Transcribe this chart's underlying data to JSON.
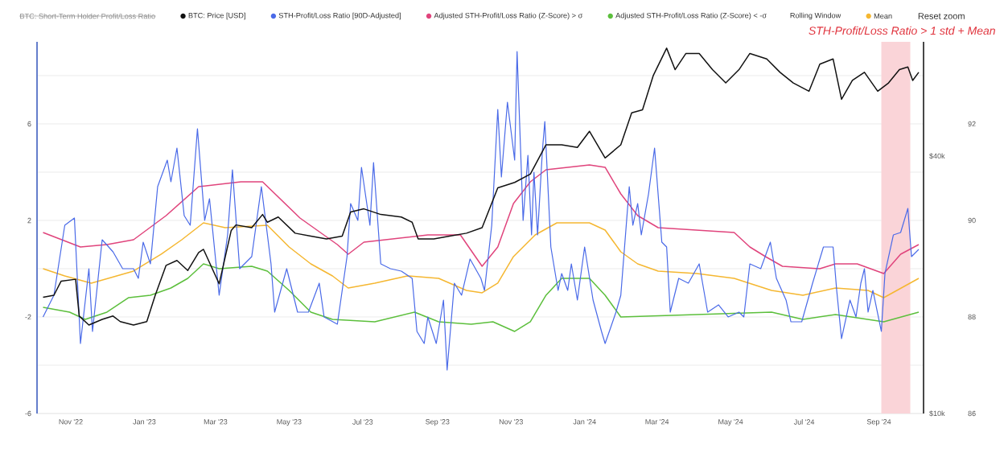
{
  "chart_data": {
    "type": "line",
    "annotations": [
      "BTC: Short-Term Holder Profit/Loss Ratio",
      "Rolling Window",
      "Reset zoom"
    ],
    "legend": "top",
    "grid": "y",
    "log": "y2",
    "xlim": [
      "2022-10-04",
      "2024-10-08"
    ],
    "xticks": [
      {
        "value": "2022-11-01",
        "label": "Nov '22"
      },
      {
        "value": "2023-01-01",
        "label": "Jan '23"
      },
      {
        "value": "2023-03-01",
        "label": "Mar '23"
      },
      {
        "value": "2023-05-01",
        "label": "May '23"
      },
      {
        "value": "2023-07-01",
        "label": "Jul '23"
      },
      {
        "value": "2023-09-01",
        "label": "Sep '23"
      },
      {
        "value": "2023-11-01",
        "label": "Nov '23"
      },
      {
        "value": "2024-01-01",
        "label": "Jan '24"
      },
      {
        "value": "2024-03-01",
        "label": "Mar '24"
      },
      {
        "value": "2024-05-01",
        "label": "May '24"
      },
      {
        "value": "2024-07-01",
        "label": "Jul '24"
      },
      {
        "value": "2024-09-01",
        "label": "Sep '24"
      }
    ],
    "ylim": [
      -6,
      9.4
    ],
    "yticks": [
      -6,
      {
        "value": -4,
        "label": null
      },
      -2,
      {
        "value": 0,
        "label": null
      },
      2,
      {
        "value": 4,
        "label": null
      },
      6,
      {
        "value": 8,
        "label": null
      }
    ],
    "y2lim": [
      10000,
      74000
    ],
    "y2ticks": [
      {
        "value": 10000,
        "label": "$10k"
      },
      {
        "value": 40000,
        "label": "$40k"
      }
    ],
    "y3lim": [
      86,
      93.7
    ],
    "y3ticks": [
      86,
      88,
      90,
      92
    ],
    "bands": [
      {
        "axis": "x",
        "from": "2024-09-03",
        "to": "2024-09-27",
        "label": "STH-Profit/Loss Ratio > 1 std + Mean",
        "color": "#fad4d8"
      }
    ],
    "series": [
      {
        "name": "BTC: Price [USD]",
        "color": "#111111",
        "axis": "y2",
        "x": [
          "2022-10-09",
          "2022-10-18",
          "2022-10-24",
          "2022-11-05",
          "2022-11-08",
          "2022-11-16",
          "2022-11-27",
          "2022-12-06",
          "2022-12-12",
          "2022-12-23",
          "2023-01-03",
          "2023-01-10",
          "2023-01-19",
          "2023-01-28",
          "2023-02-06",
          "2023-02-15",
          "2023-02-19",
          "2023-02-26",
          "2023-03-04",
          "2023-03-14",
          "2023-03-18",
          "2023-03-31",
          "2023-04-09",
          "2023-04-13",
          "2023-04-22",
          "2023-05-06",
          "2023-05-19",
          "2023-06-01",
          "2023-06-14",
          "2023-06-21",
          "2023-07-02",
          "2023-07-16",
          "2023-08-02",
          "2023-08-11",
          "2023-08-16",
          "2023-08-29",
          "2023-09-11",
          "2023-09-25",
          "2023-10-08",
          "2023-10-21",
          "2023-11-04",
          "2023-11-17",
          "2023-11-30",
          "2023-12-13",
          "2023-12-26",
          "2024-01-05",
          "2024-01-18",
          "2024-01-31",
          "2024-02-09",
          "2024-02-18",
          "2024-02-27",
          "2024-03-09",
          "2024-03-16",
          "2024-03-25",
          "2024-04-05",
          "2024-04-16",
          "2024-04-27",
          "2024-05-08",
          "2024-05-17",
          "2024-05-31",
          "2024-06-11",
          "2024-06-22",
          "2024-07-05",
          "2024-07-14",
          "2024-07-25",
          "2024-08-01",
          "2024-08-10",
          "2024-08-20",
          "2024-08-31",
          "2024-09-09",
          "2024-09-18",
          "2024-09-25",
          "2024-09-29",
          "2024-10-04"
        ],
        "values": [
          18700,
          18900,
          20400,
          20600,
          16900,
          16100,
          16600,
          16900,
          16400,
          16100,
          16400,
          18900,
          22200,
          22800,
          21600,
          23800,
          24200,
          21900,
          20100,
          26800,
          27600,
          27200,
          29200,
          28000,
          28800,
          26400,
          26000,
          25600,
          26000,
          29600,
          30100,
          29200,
          28800,
          28000,
          25600,
          25600,
          26000,
          26400,
          27200,
          33700,
          34700,
          36300,
          42500,
          42500,
          41900,
          45700,
          39600,
          42500,
          50500,
          51300,
          61800,
          71500,
          63700,
          69500,
          69500,
          63700,
          59300,
          63700,
          69500,
          67500,
          62800,
          59300,
          56700,
          65600,
          67500,
          54300,
          60100,
          62800,
          56700,
          59300,
          63700,
          64600,
          60100,
          62800
        ]
      },
      {
        "name": "STH-Profit/Loss Ratio [90D-Adjusted]",
        "color": "#4a6ae8",
        "x": [
          "2022-10-09",
          "2022-10-18",
          "2022-10-27",
          "2022-11-04",
          "2022-11-09",
          "2022-11-16",
          "2022-11-19",
          "2022-11-27",
          "2022-12-06",
          "2022-12-14",
          "2022-12-23",
          "2022-12-27",
          "2022-12-31",
          "2023-01-06",
          "2023-01-12",
          "2023-01-20",
          "2023-01-23",
          "2023-01-28",
          "2023-02-03",
          "2023-02-08",
          "2023-02-14",
          "2023-02-20",
          "2023-02-24",
          "2023-03-04",
          "2023-03-11",
          "2023-03-15",
          "2023-03-21",
          "2023-03-31",
          "2023-04-08",
          "2023-04-16",
          "2023-04-19",
          "2023-04-29",
          "2023-05-08",
          "2023-05-17",
          "2023-05-26",
          "2023-05-30",
          "2023-06-10",
          "2023-06-18",
          "2023-06-21",
          "2023-06-27",
          "2023-06-30",
          "2023-07-07",
          "2023-07-10",
          "2023-07-16",
          "2023-07-24",
          "2023-08-02",
          "2023-08-11",
          "2023-08-15",
          "2023-08-21",
          "2023-08-24",
          "2023-08-31",
          "2023-09-06",
          "2023-09-09",
          "2023-09-15",
          "2023-09-21",
          "2023-09-28",
          "2023-10-07",
          "2023-10-10",
          "2023-10-16",
          "2023-10-21",
          "2023-10-24",
          "2023-10-29",
          "2023-11-04",
          "2023-11-06",
          "2023-11-11",
          "2023-11-15",
          "2023-11-18",
          "2023-11-20",
          "2023-11-23",
          "2023-11-27",
          "2023-11-29",
          "2023-12-04",
          "2023-12-10",
          "2023-12-13",
          "2023-12-18",
          "2023-12-21",
          "2023-12-26",
          "2024-01-01",
          "2024-01-08",
          "2024-01-15",
          "2024-01-18",
          "2024-01-27",
          "2024-01-31",
          "2024-02-07",
          "2024-02-10",
          "2024-02-14",
          "2024-02-17",
          "2024-02-23",
          "2024-02-28",
          "2024-03-05",
          "2024-03-09",
          "2024-03-12",
          "2024-03-19",
          "2024-03-27",
          "2024-04-05",
          "2024-04-12",
          "2024-04-21",
          "2024-04-29",
          "2024-05-08",
          "2024-05-12",
          "2024-05-17",
          "2024-05-26",
          "2024-06-03",
          "2024-06-08",
          "2024-06-16",
          "2024-06-20",
          "2024-06-29",
          "2024-07-08",
          "2024-07-17",
          "2024-07-25",
          "2024-07-28",
          "2024-08-01",
          "2024-08-08",
          "2024-08-13",
          "2024-08-17",
          "2024-08-20",
          "2024-08-23",
          "2024-08-27",
          "2024-09-03",
          "2024-09-06",
          "2024-09-13",
          "2024-09-19",
          "2024-09-25",
          "2024-09-28",
          "2024-10-04"
        ],
        "values": [
          -2.0,
          -1.1,
          1.8,
          2.1,
          -3.1,
          0.0,
          -2.6,
          1.2,
          0.7,
          0.0,
          0.0,
          -0.4,
          1.1,
          0.2,
          3.4,
          4.5,
          3.6,
          5.0,
          2.2,
          1.8,
          5.8,
          2.0,
          2.9,
          -1.1,
          1.4,
          4.1,
          0.0,
          0.5,
          3.4,
          0.2,
          -1.8,
          0.0,
          -1.8,
          -1.8,
          -0.6,
          -2.0,
          -2.3,
          0.5,
          2.7,
          2.0,
          4.2,
          1.8,
          4.4,
          0.2,
          0.0,
          -0.1,
          -0.4,
          -2.6,
          -3.1,
          -2.0,
          -3.1,
          -1.3,
          -4.2,
          -0.6,
          -1.1,
          0.4,
          -0.4,
          -0.9,
          1.8,
          6.6,
          3.8,
          6.9,
          4.5,
          9.0,
          2.0,
          4.7,
          1.4,
          4.0,
          1.4,
          4.9,
          6.1,
          0.9,
          -0.9,
          -0.2,
          -0.9,
          0.2,
          -1.3,
          0.9,
          -1.3,
          -2.6,
          -3.1,
          -1.8,
          -1.1,
          3.4,
          1.8,
          2.7,
          1.4,
          3.1,
          5.0,
          1.1,
          0.9,
          -1.8,
          -0.4,
          -0.6,
          0.2,
          -1.8,
          -1.5,
          -2.0,
          -1.8,
          -2.0,
          0.2,
          0.0,
          1.1,
          -0.4,
          -1.3,
          -2.2,
          -2.2,
          -0.6,
          0.9,
          0.9,
          -0.9,
          -2.9,
          -1.3,
          -2.0,
          -0.6,
          0.0,
          -1.8,
          -0.9,
          -2.6,
          -0.2,
          1.4,
          1.5,
          2.5,
          0.5,
          0.8
        ]
      },
      {
        "name": "Adjusted STH-Profit/Loss Ratio (Z-Score) > σ",
        "color": "#e0447c",
        "x": [
          "2022-10-09",
          "2022-11-09",
          "2022-12-01",
          "2022-12-23",
          "2023-01-19",
          "2023-02-15",
          "2023-03-22",
          "2023-04-09",
          "2023-05-10",
          "2023-06-10",
          "2023-06-19",
          "2023-07-02",
          "2023-08-24",
          "2023-09-20",
          "2023-10-08",
          "2023-10-21",
          "2023-11-03",
          "2023-11-17",
          "2023-11-30",
          "2024-01-05",
          "2024-01-18",
          "2024-01-31",
          "2024-02-14",
          "2024-03-02",
          "2024-05-04",
          "2024-05-17",
          "2024-05-30",
          "2024-06-13",
          "2024-07-14",
          "2024-07-27",
          "2024-08-14",
          "2024-09-05",
          "2024-09-19",
          "2024-10-04"
        ],
        "values": [
          1.5,
          0.9,
          1.0,
          1.2,
          2.2,
          3.4,
          3.6,
          3.6,
          2.1,
          1.0,
          0.6,
          1.1,
          1.4,
          1.4,
          0.1,
          0.9,
          2.7,
          3.6,
          4.1,
          4.3,
          4.2,
          3.1,
          2.2,
          1.7,
          1.5,
          0.9,
          0.5,
          0.1,
          0.0,
          0.2,
          0.2,
          -0.2,
          0.6,
          1.0
        ]
      },
      {
        "name": "Adjusted STH-Profit/Loss Ratio (Z-Score) < -σ",
        "color": "#5cbf3c",
        "x": [
          "2022-10-09",
          "2022-10-31",
          "2022-11-13",
          "2022-12-01",
          "2022-12-19",
          "2023-01-06",
          "2023-01-23",
          "2023-02-06",
          "2023-02-19",
          "2023-03-04",
          "2023-03-31",
          "2023-04-13",
          "2023-05-01",
          "2023-05-19",
          "2023-06-06",
          "2023-07-11",
          "2023-08-13",
          "2023-09-02",
          "2023-09-29",
          "2023-10-17",
          "2023-11-04",
          "2023-11-17",
          "2023-11-30",
          "2023-12-13",
          "2024-01-05",
          "2024-01-18",
          "2024-01-31",
          "2024-04-03",
          "2024-06-04",
          "2024-06-30",
          "2024-07-27",
          "2024-09-05",
          "2024-10-04"
        ],
        "values": [
          -1.6,
          -1.8,
          -2.1,
          -1.8,
          -1.2,
          -1.1,
          -0.8,
          -0.4,
          0.2,
          0.0,
          0.1,
          -0.1,
          -0.9,
          -1.8,
          -2.1,
          -2.2,
          -1.8,
          -2.2,
          -2.3,
          -2.2,
          -2.6,
          -2.2,
          -1.1,
          -0.4,
          -0.4,
          -1.1,
          -2.0,
          -1.9,
          -1.8,
          -2.1,
          -1.9,
          -2.2,
          -1.8
        ]
      },
      {
        "name": "Mean",
        "color": "#f5b731",
        "x": [
          "2022-10-09",
          "2022-10-27",
          "2022-11-18",
          "2022-12-23",
          "2023-01-15",
          "2023-02-01",
          "2023-02-19",
          "2023-03-09",
          "2023-04-13",
          "2023-05-01",
          "2023-05-19",
          "2023-06-06",
          "2023-06-19",
          "2023-07-11",
          "2023-08-07",
          "2023-09-02",
          "2023-09-25",
          "2023-10-08",
          "2023-10-21",
          "2023-11-03",
          "2023-11-21",
          "2023-12-09",
          "2024-01-05",
          "2024-01-18",
          "2024-01-31",
          "2024-02-14",
          "2024-03-02",
          "2024-04-03",
          "2024-05-04",
          "2024-06-04",
          "2024-06-30",
          "2024-07-27",
          "2024-08-23",
          "2024-09-05",
          "2024-10-04"
        ],
        "values": [
          0.0,
          -0.3,
          -0.6,
          -0.1,
          0.6,
          1.2,
          1.9,
          1.7,
          1.8,
          0.9,
          0.2,
          -0.3,
          -0.8,
          -0.6,
          -0.3,
          -0.4,
          -0.9,
          -1.0,
          -0.6,
          0.5,
          1.4,
          1.9,
          1.9,
          1.6,
          0.7,
          0.2,
          -0.1,
          -0.2,
          -0.4,
          -0.9,
          -1.1,
          -0.8,
          -0.9,
          -1.2,
          -0.4
        ]
      }
    ]
  }
}
